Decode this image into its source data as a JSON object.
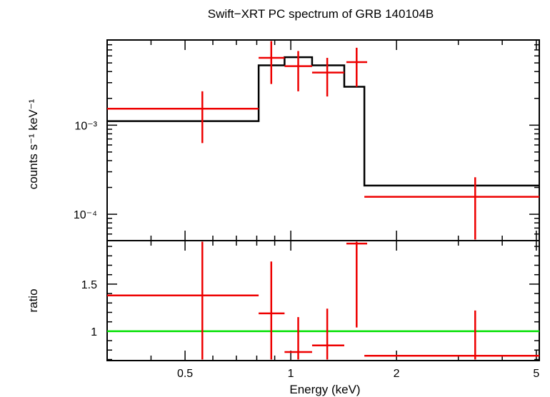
{
  "chart_data": {
    "type": "scatter",
    "title": "Swift−XRT PC spectrum of GRB 140104B",
    "xlabel": "Energy (keV)",
    "x_scale": "log",
    "xlim": [
      0.3,
      5.1
    ],
    "x_ticks": [
      {
        "value": 0.5,
        "label": "0.5"
      },
      {
        "value": 1,
        "label": "1"
      },
      {
        "value": 2,
        "label": "2"
      },
      {
        "value": 5,
        "label": "5"
      }
    ],
    "panels": [
      {
        "name": "spectrum",
        "ylabel": "counts s⁻¹ keV⁻¹",
        "y_scale": "log",
        "ylim": [
          5.2e-05,
          0.0088
        ],
        "y_ticks": [
          {
            "value": 0.001,
            "label": "10⁻³"
          },
          {
            "value": 0.0001,
            "label": "10⁻⁴"
          }
        ],
        "data": [
          {
            "x": 0.56,
            "xlo": 0.3,
            "xhi": 0.81,
            "y": 0.00153,
            "ylo": 0.00063,
            "yhi": 0.0024
          },
          {
            "x": 0.88,
            "xlo": 0.81,
            "xhi": 0.96,
            "y": 0.0057,
            "ylo": 0.0029,
            "yhi": 0.0088
          },
          {
            "x": 1.05,
            "xlo": 0.96,
            "xhi": 1.15,
            "y": 0.0046,
            "ylo": 0.0024,
            "yhi": 0.0068
          },
          {
            "x": 1.27,
            "xlo": 1.15,
            "xhi": 1.42,
            "y": 0.0039,
            "ylo": 0.0021,
            "yhi": 0.0057
          },
          {
            "x": 1.54,
            "xlo": 1.44,
            "xhi": 1.65,
            "y": 0.0051,
            "ylo": 0.0027,
            "yhi": 0.0074
          },
          {
            "x": 3.35,
            "xlo": 1.62,
            "xhi": 5.1,
            "y": 0.000157,
            "ylo": 5.2e-05,
            "yhi": 0.00026
          }
        ],
        "model": {
          "edges": [
            0.3,
            0.81,
            0.96,
            1.15,
            1.42,
            1.62,
            5.1
          ],
          "values": [
            0.00111,
            0.0047,
            0.0058,
            0.0047,
            0.0027,
            0.00021
          ]
        }
      },
      {
        "name": "ratio",
        "ylabel": "ratio",
        "y_scale": "linear",
        "ylim": [
          0.7,
          1.95
        ],
        "y_ticks": [
          {
            "value": 1,
            "label": "1"
          },
          {
            "value": 1.5,
            "label": "1.5"
          }
        ],
        "reference_line": 1,
        "data": [
          {
            "x": 0.56,
            "xlo": 0.3,
            "xhi": 0.81,
            "y": 1.38,
            "ylo": 0.7,
            "yhi": 1.95
          },
          {
            "x": 0.88,
            "xlo": 0.81,
            "xhi": 0.96,
            "y": 1.19,
            "ylo": 0.7,
            "yhi": 1.74
          },
          {
            "x": 1.05,
            "xlo": 0.96,
            "xhi": 1.15,
            "y": 0.78,
            "ylo": 0.7,
            "yhi": 1.15
          },
          {
            "x": 1.27,
            "xlo": 1.15,
            "xhi": 1.42,
            "y": 0.85,
            "ylo": 0.7,
            "yhi": 1.24
          },
          {
            "x": 1.54,
            "xlo": 1.44,
            "xhi": 1.65,
            "y": 1.93,
            "ylo": 1.04,
            "yhi": 1.95
          },
          {
            "x": 3.35,
            "xlo": 1.62,
            "xhi": 5.1,
            "y": 0.74,
            "ylo": 0.7,
            "yhi": 1.22
          }
        ]
      }
    ],
    "colors": {
      "data": "#ee0000",
      "model": "#000000",
      "reference": "#00e000"
    },
    "grid": false,
    "legend": "none"
  }
}
